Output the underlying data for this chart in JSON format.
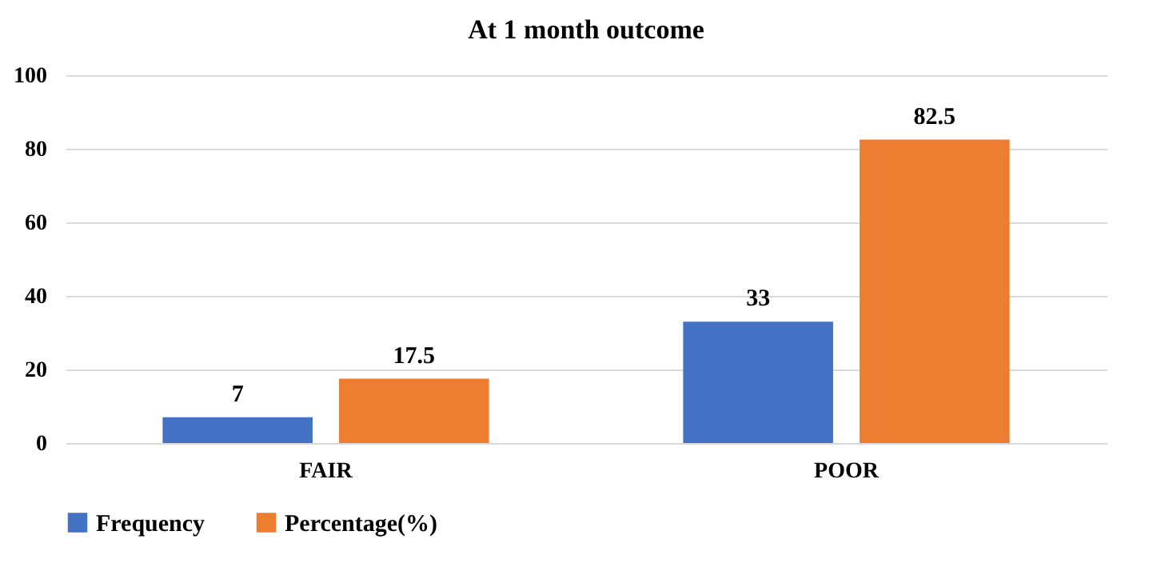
{
  "chart_data": {
    "type": "bar",
    "title": "At 1 month outcome",
    "categories": [
      "FAIR",
      "POOR"
    ],
    "series": [
      {
        "name": "Frequency",
        "color": "#4472c4",
        "values": [
          7,
          33
        ]
      },
      {
        "name": "Percentage(%)",
        "color": "#ed7d31",
        "values": [
          17.5,
          82.5
        ]
      }
    ],
    "ylim": [
      0,
      100
    ],
    "yticks": [
      0,
      20,
      40,
      60,
      80,
      100
    ],
    "grid": "y",
    "legend": "bottom",
    "data_labels": true
  }
}
